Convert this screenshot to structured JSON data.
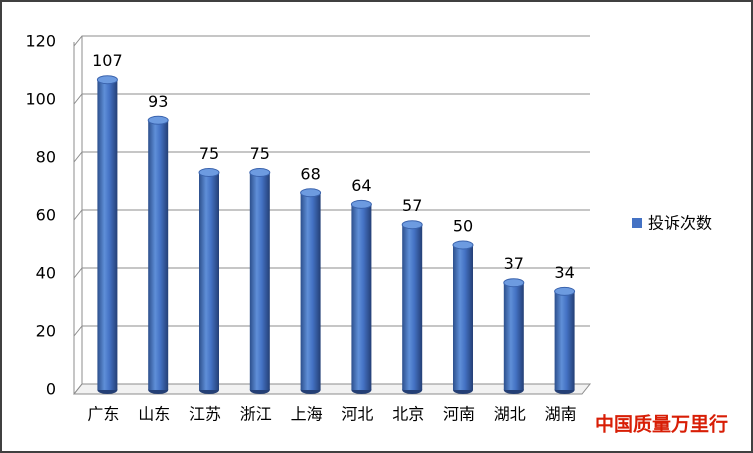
{
  "chart_data": {
    "type": "bar",
    "categories": [
      "广东",
      "山东",
      "江苏",
      "浙江",
      "上海",
      "河北",
      "北京",
      "河南",
      "湖北",
      "湖南"
    ],
    "series": [
      {
        "name": "投诉次数",
        "color": "#4472c4",
        "values": [
          107,
          93,
          75,
          75,
          68,
          64,
          57,
          50,
          37,
          34
        ]
      }
    ],
    "ylim": [
      0,
      120
    ],
    "yticks": [
      0,
      20,
      40,
      60,
      80,
      100,
      120
    ],
    "grid": true,
    "legend": "right",
    "watermark": "中国质量万里行"
  }
}
